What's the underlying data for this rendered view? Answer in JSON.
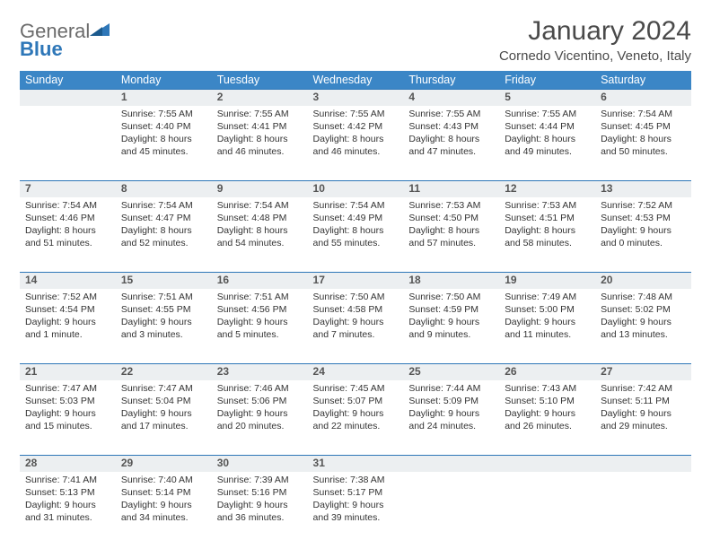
{
  "logo": {
    "general": "General",
    "blue": "Blue"
  },
  "title": "January 2024",
  "location": "Cornedo Vicentino, Veneto, Italy",
  "colors": {
    "header_bg": "#3b86c6",
    "header_border": "#2e77b8",
    "daynum_bg": "#eceff1",
    "text": "#333333",
    "logo_gray": "#6b6b6b",
    "logo_blue": "#2e77b8"
  },
  "weekdays": [
    "Sunday",
    "Monday",
    "Tuesday",
    "Wednesday",
    "Thursday",
    "Friday",
    "Saturday"
  ],
  "weeks": [
    [
      null,
      {
        "n": "1",
        "sr": "Sunrise: 7:55 AM",
        "ss": "Sunset: 4:40 PM",
        "dl": "Daylight: 8 hours and 45 minutes."
      },
      {
        "n": "2",
        "sr": "Sunrise: 7:55 AM",
        "ss": "Sunset: 4:41 PM",
        "dl": "Daylight: 8 hours and 46 minutes."
      },
      {
        "n": "3",
        "sr": "Sunrise: 7:55 AM",
        "ss": "Sunset: 4:42 PM",
        "dl": "Daylight: 8 hours and 46 minutes."
      },
      {
        "n": "4",
        "sr": "Sunrise: 7:55 AM",
        "ss": "Sunset: 4:43 PM",
        "dl": "Daylight: 8 hours and 47 minutes."
      },
      {
        "n": "5",
        "sr": "Sunrise: 7:55 AM",
        "ss": "Sunset: 4:44 PM",
        "dl": "Daylight: 8 hours and 49 minutes."
      },
      {
        "n": "6",
        "sr": "Sunrise: 7:54 AM",
        "ss": "Sunset: 4:45 PM",
        "dl": "Daylight: 8 hours and 50 minutes."
      }
    ],
    [
      {
        "n": "7",
        "sr": "Sunrise: 7:54 AM",
        "ss": "Sunset: 4:46 PM",
        "dl": "Daylight: 8 hours and 51 minutes."
      },
      {
        "n": "8",
        "sr": "Sunrise: 7:54 AM",
        "ss": "Sunset: 4:47 PM",
        "dl": "Daylight: 8 hours and 52 minutes."
      },
      {
        "n": "9",
        "sr": "Sunrise: 7:54 AM",
        "ss": "Sunset: 4:48 PM",
        "dl": "Daylight: 8 hours and 54 minutes."
      },
      {
        "n": "10",
        "sr": "Sunrise: 7:54 AM",
        "ss": "Sunset: 4:49 PM",
        "dl": "Daylight: 8 hours and 55 minutes."
      },
      {
        "n": "11",
        "sr": "Sunrise: 7:53 AM",
        "ss": "Sunset: 4:50 PM",
        "dl": "Daylight: 8 hours and 57 minutes."
      },
      {
        "n": "12",
        "sr": "Sunrise: 7:53 AM",
        "ss": "Sunset: 4:51 PM",
        "dl": "Daylight: 8 hours and 58 minutes."
      },
      {
        "n": "13",
        "sr": "Sunrise: 7:52 AM",
        "ss": "Sunset: 4:53 PM",
        "dl": "Daylight: 9 hours and 0 minutes."
      }
    ],
    [
      {
        "n": "14",
        "sr": "Sunrise: 7:52 AM",
        "ss": "Sunset: 4:54 PM",
        "dl": "Daylight: 9 hours and 1 minute."
      },
      {
        "n": "15",
        "sr": "Sunrise: 7:51 AM",
        "ss": "Sunset: 4:55 PM",
        "dl": "Daylight: 9 hours and 3 minutes."
      },
      {
        "n": "16",
        "sr": "Sunrise: 7:51 AM",
        "ss": "Sunset: 4:56 PM",
        "dl": "Daylight: 9 hours and 5 minutes."
      },
      {
        "n": "17",
        "sr": "Sunrise: 7:50 AM",
        "ss": "Sunset: 4:58 PM",
        "dl": "Daylight: 9 hours and 7 minutes."
      },
      {
        "n": "18",
        "sr": "Sunrise: 7:50 AM",
        "ss": "Sunset: 4:59 PM",
        "dl": "Daylight: 9 hours and 9 minutes."
      },
      {
        "n": "19",
        "sr": "Sunrise: 7:49 AM",
        "ss": "Sunset: 5:00 PM",
        "dl": "Daylight: 9 hours and 11 minutes."
      },
      {
        "n": "20",
        "sr": "Sunrise: 7:48 AM",
        "ss": "Sunset: 5:02 PM",
        "dl": "Daylight: 9 hours and 13 minutes."
      }
    ],
    [
      {
        "n": "21",
        "sr": "Sunrise: 7:47 AM",
        "ss": "Sunset: 5:03 PM",
        "dl": "Daylight: 9 hours and 15 minutes."
      },
      {
        "n": "22",
        "sr": "Sunrise: 7:47 AM",
        "ss": "Sunset: 5:04 PM",
        "dl": "Daylight: 9 hours and 17 minutes."
      },
      {
        "n": "23",
        "sr": "Sunrise: 7:46 AM",
        "ss": "Sunset: 5:06 PM",
        "dl": "Daylight: 9 hours and 20 minutes."
      },
      {
        "n": "24",
        "sr": "Sunrise: 7:45 AM",
        "ss": "Sunset: 5:07 PM",
        "dl": "Daylight: 9 hours and 22 minutes."
      },
      {
        "n": "25",
        "sr": "Sunrise: 7:44 AM",
        "ss": "Sunset: 5:09 PM",
        "dl": "Daylight: 9 hours and 24 minutes."
      },
      {
        "n": "26",
        "sr": "Sunrise: 7:43 AM",
        "ss": "Sunset: 5:10 PM",
        "dl": "Daylight: 9 hours and 26 minutes."
      },
      {
        "n": "27",
        "sr": "Sunrise: 7:42 AM",
        "ss": "Sunset: 5:11 PM",
        "dl": "Daylight: 9 hours and 29 minutes."
      }
    ],
    [
      {
        "n": "28",
        "sr": "Sunrise: 7:41 AM",
        "ss": "Sunset: 5:13 PM",
        "dl": "Daylight: 9 hours and 31 minutes."
      },
      {
        "n": "29",
        "sr": "Sunrise: 7:40 AM",
        "ss": "Sunset: 5:14 PM",
        "dl": "Daylight: 9 hours and 34 minutes."
      },
      {
        "n": "30",
        "sr": "Sunrise: 7:39 AM",
        "ss": "Sunset: 5:16 PM",
        "dl": "Daylight: 9 hours and 36 minutes."
      },
      {
        "n": "31",
        "sr": "Sunrise: 7:38 AM",
        "ss": "Sunset: 5:17 PM",
        "dl": "Daylight: 9 hours and 39 minutes."
      },
      null,
      null,
      null
    ]
  ]
}
